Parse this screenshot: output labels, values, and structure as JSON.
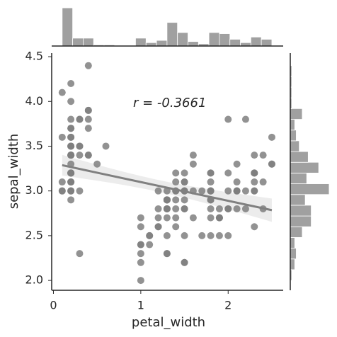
{
  "chart_data": {
    "type": "scatter",
    "xlabel": "petal_width",
    "ylabel": "sepal_width",
    "annotation": "r = -0.3661",
    "point_color": "#7f7f7f",
    "line_color": "#808080",
    "hist_color": "#a0a0a0",
    "regression": true,
    "xlim": [
      -0.02,
      2.63
    ],
    "ylim": [
      1.89,
      4.54
    ],
    "xticks": [
      0,
      1,
      2
    ],
    "yticks": [
      {
        "value": 2,
        "label": "2.0"
      },
      2.5,
      {
        "value": 3,
        "label": "3.0"
      },
      3.5,
      {
        "value": 4,
        "label": "4.0"
      },
      4.5
    ],
    "x": [
      0.2,
      0.2,
      0.2,
      0.2,
      0.2,
      0.4,
      0.3,
      0.2,
      0.2,
      0.1,
      0.2,
      0.2,
      0.1,
      0.1,
      0.2,
      0.4,
      0.4,
      0.3,
      0.3,
      0.3,
      0.2,
      0.4,
      0.2,
      0.5,
      0.2,
      0.2,
      0.4,
      0.2,
      0.2,
      0.2,
      0.2,
      0.4,
      0.1,
      0.2,
      0.2,
      0.2,
      0.2,
      0.1,
      0.2,
      0.2,
      0.3,
      0.3,
      0.2,
      0.6,
      0.4,
      0.3,
      0.2,
      0.2,
      0.2,
      0.2,
      1.4,
      1.5,
      1.5,
      1.3,
      1.5,
      1.3,
      1.6,
      1.0,
      1.3,
      1.4,
      1.0,
      1.5,
      1.0,
      1.4,
      1.3,
      1.4,
      1.5,
      1.0,
      1.5,
      1.1,
      1.8,
      1.3,
      1.5,
      1.2,
      1.3,
      1.4,
      1.4,
      1.7,
      1.5,
      1.0,
      1.1,
      1.0,
      1.2,
      1.6,
      1.5,
      1.6,
      1.5,
      1.3,
      1.3,
      1.3,
      1.2,
      1.4,
      1.2,
      1.0,
      1.3,
      1.2,
      1.3,
      1.3,
      1.1,
      1.3,
      2.5,
      1.9,
      2.1,
      1.8,
      2.2,
      2.1,
      1.7,
      1.8,
      1.8,
      2.5,
      2.0,
      1.9,
      2.1,
      2.0,
      2.4,
      2.3,
      1.8,
      2.2,
      2.3,
      1.5,
      2.3,
      2.0,
      2.0,
      1.8,
      2.1,
      1.8,
      1.8,
      1.8,
      2.1,
      1.6,
      1.9,
      2.0,
      2.2,
      1.5,
      1.4,
      2.3,
      2.4,
      1.8,
      1.8,
      2.1,
      2.4,
      2.3,
      1.9,
      2.3,
      2.5,
      2.3,
      1.9,
      2.0,
      2.3,
      1.8
    ],
    "y": [
      3.5,
      3.0,
      3.2,
      3.1,
      3.6,
      3.9,
      3.4,
      3.4,
      2.9,
      3.1,
      3.7,
      3.4,
      3.0,
      3.0,
      4.0,
      4.4,
      3.9,
      3.5,
      3.8,
      3.8,
      3.4,
      3.7,
      3.6,
      3.3,
      3.4,
      3.0,
      3.4,
      3.5,
      3.4,
      3.2,
      3.1,
      3.4,
      4.1,
      4.2,
      3.1,
      3.2,
      3.5,
      3.6,
      3.0,
      3.4,
      3.5,
      2.3,
      3.2,
      3.5,
      3.8,
      3.0,
      3.8,
      3.2,
      3.7,
      3.3,
      3.2,
      3.2,
      3.1,
      2.3,
      2.8,
      2.8,
      3.3,
      2.4,
      2.9,
      2.7,
      2.0,
      3.0,
      2.2,
      2.9,
      2.9,
      3.1,
      3.0,
      2.7,
      2.2,
      2.5,
      3.2,
      2.8,
      2.5,
      2.8,
      2.9,
      3.0,
      2.8,
      3.0,
      2.9,
      2.6,
      2.4,
      2.4,
      2.7,
      2.7,
      3.0,
      3.4,
      3.1,
      2.3,
      3.0,
      2.5,
      2.6,
      3.0,
      2.6,
      2.3,
      2.7,
      3.0,
      2.9,
      2.9,
      2.5,
      2.8,
      3.3,
      2.7,
      3.0,
      2.9,
      3.0,
      3.0,
      2.5,
      2.9,
      2.5,
      3.6,
      3.2,
      2.7,
      3.0,
      2.5,
      2.8,
      3.2,
      3.0,
      3.8,
      2.6,
      2.2,
      3.2,
      2.8,
      2.8,
      2.7,
      3.3,
      3.2,
      2.8,
      3.0,
      2.8,
      3.0,
      2.8,
      3.8,
      2.8,
      2.8,
      2.6,
      3.0,
      3.4,
      3.1,
      3.0,
      3.1,
      3.1,
      3.1,
      2.7,
      3.2,
      3.3,
      3.0,
      2.5,
      3.0,
      3.4,
      3.0
    ],
    "marginal_x": {
      "bins": [
        0.1,
        0.22,
        0.34,
        0.46,
        0.58,
        0.7,
        0.82,
        0.94,
        1.06,
        1.18,
        1.3,
        1.42,
        1.54,
        1.66,
        1.78,
        1.9,
        2.02,
        2.14,
        2.26,
        2.38,
        2.5
      ],
      "counts": [
        34,
        7,
        7,
        1,
        1,
        0,
        0,
        7,
        3,
        5,
        21,
        12,
        4,
        2,
        12,
        11,
        6,
        3,
        8,
        6
      ]
    },
    "marginal_y": {
      "bins": [
        2.0,
        2.12,
        2.24,
        2.36,
        2.48,
        2.6,
        2.72,
        2.84,
        2.96,
        3.08,
        3.2,
        3.32,
        3.44,
        3.56,
        3.68,
        3.8,
        3.92,
        4.04,
        4.16,
        4.28,
        4.4
      ],
      "counts": [
        1,
        3,
        4,
        3,
        8,
        14,
        14,
        10,
        26,
        11,
        19,
        12,
        6,
        4,
        3,
        8,
        1,
        1,
        1,
        1
      ]
    }
  }
}
